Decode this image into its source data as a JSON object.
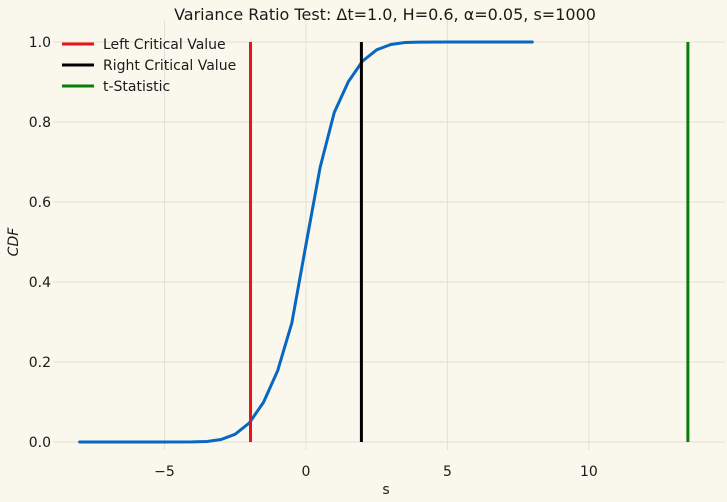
{
  "chart_data": {
    "type": "line",
    "title": "Variance Ratio Test: Δt=1.0, H=0.6, α=0.05, s=1000",
    "xlabel": "s",
    "ylabel": "CDF",
    "xlim": [
      -8.8,
      14.6
    ],
    "ylim": [
      -0.01,
      1.04
    ],
    "x_ticks": [
      -5,
      0,
      5,
      10
    ],
    "x_tick_labels": [
      "−5",
      "0",
      "5",
      "10"
    ],
    "y_ticks": [
      0.0,
      0.2,
      0.4,
      0.6,
      0.8,
      1.0
    ],
    "y_tick_labels": [
      "0.0",
      "0.2",
      "0.4",
      "0.6",
      "0.8",
      "1.0"
    ],
    "grid": true,
    "legend_position": "top-left",
    "series": [
      {
        "name": "",
        "kind": "cdf-curve",
        "color": "#0867c1",
        "x": [
          -8,
          -6,
          -5,
          -4,
          -3.5,
          -3,
          -2.5,
          -2,
          -1.5,
          -1,
          -0.5,
          0,
          0.5,
          1,
          1.5,
          2,
          2.5,
          3,
          3.5,
          4,
          5,
          6,
          8
        ],
        "y": [
          0.0,
          0.0,
          0.0,
          0.0002,
          0.0013,
          0.0062,
          0.0196,
          0.0478,
          0.0993,
          0.1783,
          0.2974,
          0.4933,
          0.6863,
          0.8238,
          0.9009,
          0.9522,
          0.9804,
          0.9938,
          0.9987,
          0.9998,
          1.0,
          1.0,
          1.0
        ]
      },
      {
        "name": "Left Critical Value",
        "kind": "vline",
        "color": "#e8141a",
        "x": -1.96
      },
      {
        "name": "Right Critical Value",
        "kind": "vline",
        "color": "#000000",
        "x": 1.96
      },
      {
        "name": "t-Statistic",
        "kind": "vline",
        "color": "#0a7e0a",
        "x": 13.5
      }
    ]
  }
}
